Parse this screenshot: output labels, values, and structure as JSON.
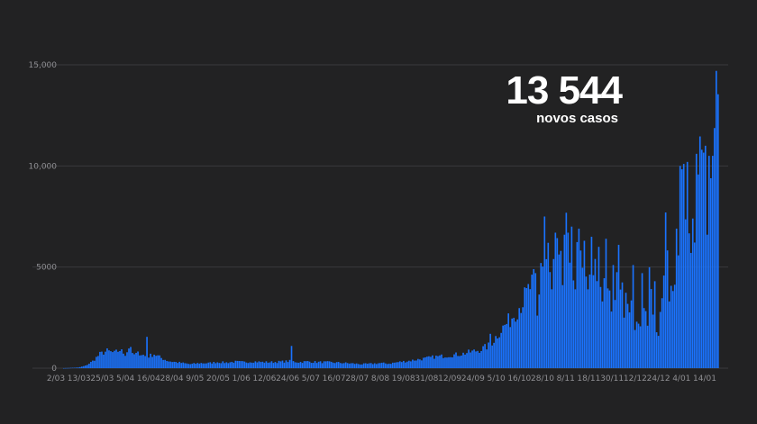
{
  "headline": {
    "value": "13 544",
    "label": "novos casos"
  },
  "colors": {
    "background": "#222223",
    "bar": "#1a73ff",
    "grid": "#3a3a3c",
    "tick": "#8f8f93"
  },
  "chart_data": {
    "type": "bar",
    "title": "",
    "xlabel": "",
    "ylabel": "",
    "ylim": [
      0,
      15000
    ],
    "yticks": [
      {
        "value": 0,
        "label": "0"
      },
      {
        "value": 5000,
        "label": "5000"
      },
      {
        "value": 10000,
        "label": "10,000"
      },
      {
        "value": 15000,
        "label": "15,000"
      }
    ],
    "xtick_labels": [
      "2/03",
      "13/03",
      "25/03",
      "5/04",
      "16/04",
      "28/04",
      "9/05",
      "20/05",
      "1/06",
      "12/06",
      "24/06",
      "5/07",
      "16/07",
      "28/07",
      "8/08",
      "19/08",
      "31/08",
      "12/09",
      "24/09",
      "5/10",
      "16/10",
      "28/10",
      "8/11",
      "18/11",
      "30/11",
      "12/12",
      "24/12",
      "4/01",
      "14/01"
    ],
    "grid": true,
    "anchors": [
      [
        0,
        2
      ],
      [
        8,
        30
      ],
      [
        12,
        120
      ],
      [
        16,
        350
      ],
      [
        20,
        700
      ],
      [
        24,
        850
      ],
      [
        28,
        750
      ],
      [
        31,
        900
      ],
      [
        34,
        700
      ],
      [
        36,
        1000
      ],
      [
        38,
        650
      ],
      [
        42,
        750
      ],
      [
        46,
        550
      ],
      [
        50,
        700
      ],
      [
        54,
        500
      ],
      [
        58,
        350
      ],
      [
        62,
        300
      ],
      [
        66,
        250
      ],
      [
        70,
        200
      ],
      [
        75,
        250
      ],
      [
        80,
        250
      ],
      [
        85,
        300
      ],
      [
        90,
        280
      ],
      [
        95,
        320
      ],
      [
        100,
        300
      ],
      [
        105,
        330
      ],
      [
        110,
        300
      ],
      [
        115,
        300
      ],
      [
        120,
        320
      ],
      [
        125,
        350
      ],
      [
        130,
        300
      ],
      [
        135,
        330
      ],
      [
        140,
        300
      ],
      [
        145,
        300
      ],
      [
        150,
        280
      ],
      [
        155,
        260
      ],
      [
        160,
        230
      ],
      [
        165,
        200
      ],
      [
        170,
        220
      ],
      [
        175,
        250
      ],
      [
        180,
        230
      ],
      [
        185,
        300
      ],
      [
        190,
        350
      ],
      [
        195,
        420
      ],
      [
        200,
        480
      ],
      [
        205,
        560
      ],
      [
        210,
        600
      ],
      [
        215,
        650
      ],
      [
        220,
        700
      ],
      [
        225,
        800
      ],
      [
        230,
        900
      ],
      [
        235,
        1100
      ],
      [
        238,
        1400
      ],
      [
        241,
        1800
      ],
      [
        244,
        2100
      ],
      [
        247,
        2400
      ],
      [
        250,
        2800
      ],
      [
        253,
        3200
      ],
      [
        256,
        3600
      ],
      [
        258,
        4000
      ],
      [
        260,
        4200
      ],
      [
        262,
        2700
      ],
      [
        264,
        4400
      ],
      [
        266,
        6000
      ],
      [
        268,
        4800
      ],
      [
        270,
        4000
      ],
      [
        272,
        6300
      ],
      [
        274,
        5000
      ],
      [
        276,
        4200
      ],
      [
        278,
        6600
      ],
      [
        280,
        5500
      ],
      [
        282,
        4600
      ],
      [
        284,
        5800
      ],
      [
        286,
        5000
      ],
      [
        288,
        4000
      ],
      [
        290,
        6000
      ],
      [
        292,
        4800
      ],
      [
        294,
        3500
      ],
      [
        296,
        4500
      ],
      [
        298,
        3700
      ],
      [
        300,
        5000
      ],
      [
        302,
        3600
      ],
      [
        304,
        3000
      ],
      [
        306,
        4600
      ],
      [
        308,
        3400
      ],
      [
        310,
        4200
      ],
      [
        312,
        2800
      ],
      [
        314,
        3600
      ],
      [
        316,
        2300
      ],
      [
        318,
        3000
      ],
      [
        320,
        2000
      ],
      [
        322,
        3200
      ],
      [
        324,
        4300
      ],
      [
        326,
        3000
      ],
      [
        328,
        1700
      ],
      [
        330,
        2500
      ],
      [
        332,
        4200
      ],
      [
        334,
        6200
      ],
      [
        336,
        3500
      ],
      [
        338,
        4000
      ],
      [
        340,
        5200
      ],
      [
        342,
        9500
      ],
      [
        344,
        8800
      ],
      [
        346,
        7400
      ],
      [
        348,
        5800
      ],
      [
        350,
        8000
      ],
      [
        352,
        10300
      ],
      [
        354,
        9300
      ],
      [
        356,
        10700
      ],
      [
        358,
        8500
      ],
      [
        360,
        10700
      ],
      [
        361,
        14700
      ],
      [
        362,
        13544
      ]
    ],
    "peaks": [
      [
        37,
        1050
      ],
      [
        46,
        1550
      ],
      [
        126,
        1100
      ],
      [
        236,
        1700
      ],
      [
        261,
        4700
      ],
      [
        264,
        5200
      ],
      [
        266,
        7500
      ],
      [
        268,
        6200
      ],
      [
        272,
        6700
      ],
      [
        275,
        5800
      ],
      [
        277,
        6600
      ],
      [
        279,
        6700
      ],
      [
        281,
        7000
      ],
      [
        285,
        6900
      ],
      [
        288,
        6300
      ],
      [
        292,
        6500
      ],
      [
        294,
        5400
      ],
      [
        296,
        6000
      ],
      [
        300,
        6400
      ],
      [
        304,
        5100
      ],
      [
        307,
        6100
      ],
      [
        315,
        5100
      ],
      [
        320,
        4700
      ],
      [
        327,
        4300
      ],
      [
        333,
        7700
      ],
      [
        339,
        6900
      ],
      [
        341,
        10000
      ],
      [
        343,
        10100
      ],
      [
        345,
        10200
      ],
      [
        348,
        7400
      ],
      [
        350,
        10600
      ],
      [
        353,
        10800
      ],
      [
        355,
        11000
      ],
      [
        357,
        10500
      ],
      [
        359,
        10500
      ],
      [
        361,
        14700
      ],
      [
        362,
        13544
      ]
    ],
    "troughs": [
      [
        262,
        2600
      ],
      [
        270,
        3900
      ],
      [
        283,
        3900
      ],
      [
        290,
        3900
      ],
      [
        298,
        3300
      ],
      [
        303,
        2800
      ],
      [
        310,
        2500
      ],
      [
        318,
        2200
      ],
      [
        323,
        2100
      ],
      [
        329,
        1600
      ],
      [
        335,
        3300
      ],
      [
        347,
        5700
      ],
      [
        356,
        6600
      ]
    ],
    "note": "Daily new COVID-19 cases, 2 March to late January; 363 daily bars"
  }
}
